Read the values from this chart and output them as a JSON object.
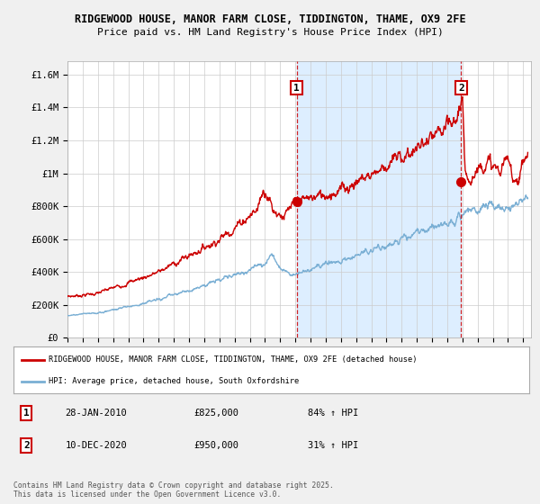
{
  "title_line1": "RIDGEWOOD HOUSE, MANOR FARM CLOSE, TIDDINGTON, THAME, OX9 2FE",
  "title_line2": "Price paid vs. HM Land Registry's House Price Index (HPI)",
  "ylabel_ticks": [
    "£0",
    "£200K",
    "£400K",
    "£600K",
    "£800K",
    "£1M",
    "£1.2M",
    "£1.4M",
    "£1.6M"
  ],
  "ylabel_values": [
    0,
    200000,
    400000,
    600000,
    800000,
    1000000,
    1200000,
    1400000,
    1600000
  ],
  "ylim": [
    0,
    1680000
  ],
  "xlim_start": 1995.0,
  "xlim_end": 2025.5,
  "red_color": "#cc0000",
  "blue_color": "#7aafd4",
  "shade_color": "#ddeeff",
  "marker1_date": 2010.08,
  "marker2_date": 2020.92,
  "marker1_price": 825000,
  "marker2_price": 950000,
  "marker1_label": "1",
  "marker2_label": "2",
  "legend_line1": "RIDGEWOOD HOUSE, MANOR FARM CLOSE, TIDDINGTON, THAME, OX9 2FE (detached house)",
  "legend_line2": "HPI: Average price, detached house, South Oxfordshire",
  "note1_num": "1",
  "note1_date": "28-JAN-2010",
  "note1_price": "£825,000",
  "note1_hpi": "84% ↑ HPI",
  "note2_num": "2",
  "note2_date": "10-DEC-2020",
  "note2_price": "£950,000",
  "note2_hpi": "31% ↑ HPI",
  "footer": "Contains HM Land Registry data © Crown copyright and database right 2025.\nThis data is licensed under the Open Government Licence v3.0.",
  "bg_color": "#f0f0f0",
  "plot_bg_color": "#ffffff",
  "grid_color": "#cccccc"
}
